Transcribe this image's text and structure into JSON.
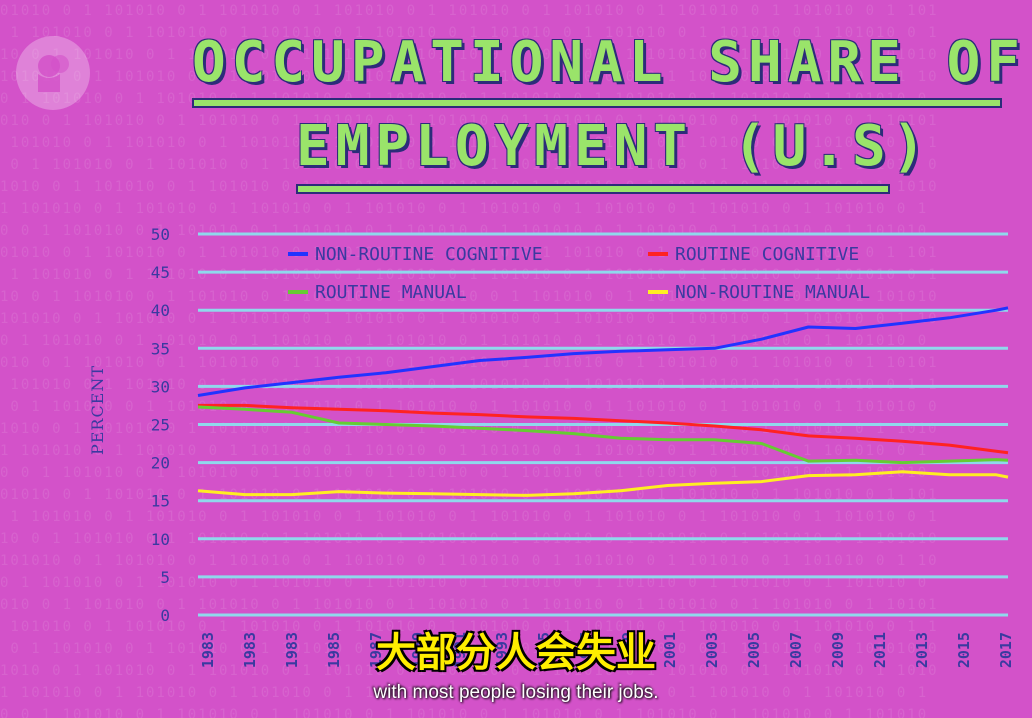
{
  "header": {
    "title_line1": "OCCUPATIONAL SHARE OF",
    "title_line2": "EMPLOYMENT (U.S)"
  },
  "logo": {
    "icon": "pbs-logo-icon"
  },
  "subtitles": {
    "zh": "大部分人会失业",
    "en": "with most people losing their jobs."
  },
  "colors": {
    "background": "#d352c9",
    "title": "#9ae46a",
    "title_outline": "#2c2c7a",
    "axis_text": "#3a3aa0",
    "gridline": "#8fd8ec",
    "subtitle_zh": "#ffee00",
    "subtitle_en": "#ffffff"
  },
  "chart_data": {
    "type": "line",
    "ylabel": "PERCENT",
    "xlabel": "",
    "ylim": [
      0,
      50
    ],
    "yticks": [
      0,
      5,
      10,
      15,
      20,
      25,
      30,
      35,
      40,
      45,
      50
    ],
    "xticks": [
      "1983",
      "1983",
      "1983",
      "1985",
      "1987",
      "1989",
      "1991",
      "1993",
      "1995",
      "1997",
      "1999",
      "2001",
      "2003",
      "2005",
      "2007",
      "2009",
      "2011",
      "2013",
      "2015",
      "2017"
    ],
    "xlim": [
      1983,
      2017.5
    ],
    "grid": true,
    "legend_position": "top",
    "x": [
      1983,
      1985,
      1987,
      1989,
      1991,
      1993,
      1995,
      1997,
      1999,
      2001,
      2003,
      2005,
      2007,
      2009,
      2011,
      2013,
      2015,
      2017,
      2017.5
    ],
    "series": [
      {
        "name": "NON-ROUTINE COGNITIVE",
        "color": "#2233ff",
        "values": [
          28.8,
          29.8,
          30.5,
          31.2,
          31.8,
          32.6,
          33.4,
          33.8,
          34.3,
          34.6,
          34.8,
          35.0,
          36.2,
          37.8,
          37.6,
          38.3,
          39.0,
          40.0,
          40.3
        ]
      },
      {
        "name": "ROUTINE COGNITIVE",
        "color": "#ff2222",
        "values": [
          27.5,
          27.5,
          27.2,
          27.0,
          26.8,
          26.5,
          26.3,
          26.0,
          25.8,
          25.5,
          25.2,
          24.8,
          24.3,
          23.5,
          23.2,
          22.8,
          22.3,
          21.5,
          21.3
        ]
      },
      {
        "name": "ROUTINE MANUAL",
        "color": "#66cc33",
        "values": [
          27.3,
          27.0,
          26.6,
          25.2,
          25.0,
          24.8,
          24.5,
          24.2,
          23.8,
          23.2,
          23.0,
          23.0,
          22.5,
          20.2,
          20.3,
          20.0,
          20.2,
          20.4,
          20.3
        ]
      },
      {
        "name": "NON-ROUTINE MANUAL",
        "color": "#ffee22",
        "values": [
          16.3,
          15.8,
          15.8,
          16.2,
          16.0,
          15.9,
          15.8,
          15.7,
          15.9,
          16.3,
          17.0,
          17.3,
          17.5,
          18.3,
          18.4,
          18.8,
          18.4,
          18.4,
          18.1
        ]
      }
    ]
  }
}
